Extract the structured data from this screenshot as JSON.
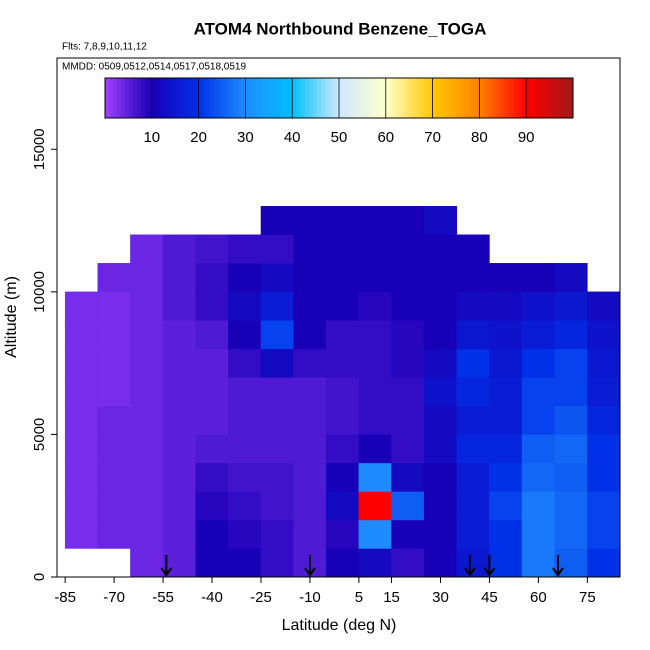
{
  "chart_data": {
    "type": "heatmap",
    "title": "ATOM4 Northbound Benzene_TOGA",
    "subtitle": "Flts: 7,8,9,10,11,12",
    "annotation": "MMDD: 0509,0512,0514,0517,0518,0519",
    "x_label": "Latitude (deg N)",
    "y_label": "Altitude (m)",
    "xlim": [
      -87.5,
      85
    ],
    "ylim": [
      0,
      18200
    ],
    "xticks": [
      -85,
      -70,
      -55,
      -40,
      -25,
      -10,
      5,
      15,
      30,
      45,
      60,
      75
    ],
    "yticks": [
      0,
      5000,
      10000,
      15000
    ],
    "x_bins": [
      -85,
      -75,
      -65,
      -55,
      -45,
      -35,
      -25,
      -15,
      -5,
      5,
      15,
      25,
      35,
      45,
      55,
      65,
      75,
      85
    ],
    "y_bins": [
      0,
      1000,
      2000,
      3000,
      4000,
      5000,
      6000,
      7000,
      8000,
      9000,
      10000,
      11000,
      12000,
      13000
    ],
    "values": [
      [
        null,
        null,
        4,
        5,
        10,
        10,
        8,
        6,
        10,
        12,
        8,
        10,
        15,
        20,
        28,
        25,
        20
      ],
      [
        3,
        4,
        4,
        5,
        10,
        9,
        8,
        6,
        9,
        30,
        10,
        10,
        16,
        20,
        28,
        26,
        22
      ],
      [
        3,
        4,
        4,
        5,
        9,
        8,
        7,
        6,
        12,
        90,
        25,
        10,
        16,
        22,
        28,
        26,
        22
      ],
      [
        3,
        4,
        4,
        5,
        8,
        7,
        7,
        6,
        10,
        30,
        12,
        10,
        16,
        20,
        26,
        25,
        20
      ],
      [
        3,
        4,
        4,
        5,
        6,
        6,
        6,
        6,
        8,
        10,
        8,
        12,
        18,
        18,
        25,
        26,
        20
      ],
      [
        3,
        4,
        4,
        5,
        5,
        6,
        6,
        6,
        7,
        8,
        8,
        12,
        16,
        16,
        22,
        24,
        18
      ],
      [
        3,
        3,
        4,
        5,
        5,
        6,
        6,
        6,
        7,
        8,
        8,
        14,
        18,
        16,
        22,
        22,
        16
      ],
      [
        3,
        3,
        4,
        5,
        5,
        8,
        12,
        8,
        8,
        8,
        9,
        12,
        20,
        15,
        20,
        22,
        15
      ],
      [
        3,
        3,
        4,
        5,
        6,
        10,
        22,
        10,
        8,
        8,
        9,
        10,
        15,
        14,
        16,
        18,
        14
      ],
      [
        3,
        3,
        4,
        6,
        8,
        12,
        16,
        10,
        10,
        9,
        10,
        10,
        12,
        12,
        14,
        15,
        12
      ],
      [
        null,
        4,
        4,
        6,
        8,
        10,
        12,
        10,
        10,
        10,
        10,
        10,
        10,
        10,
        10,
        12,
        null
      ],
      [
        null,
        null,
        4,
        6,
        7,
        8,
        8,
        10,
        10,
        10,
        10,
        10,
        10,
        null,
        null,
        null,
        null
      ],
      [
        null,
        null,
        null,
        null,
        null,
        null,
        10,
        10,
        10,
        10,
        10,
        12,
        null,
        null,
        null,
        null,
        null
      ]
    ],
    "colorscale": [
      "#a040ff",
      "#1800b8",
      "#0030e8",
      "#1e8cff",
      "#00c0ff",
      "#d0e8ff",
      "#ffffc8",
      "#ffc800",
      "#ff8000",
      "#ff0000",
      "#a01818"
    ],
    "colorlim": [
      0,
      100
    ],
    "colorticks": [
      10,
      20,
      30,
      40,
      50,
      60,
      70,
      80,
      90
    ],
    "arrows": [
      -54,
      -10,
      39,
      45,
      66
    ]
  }
}
